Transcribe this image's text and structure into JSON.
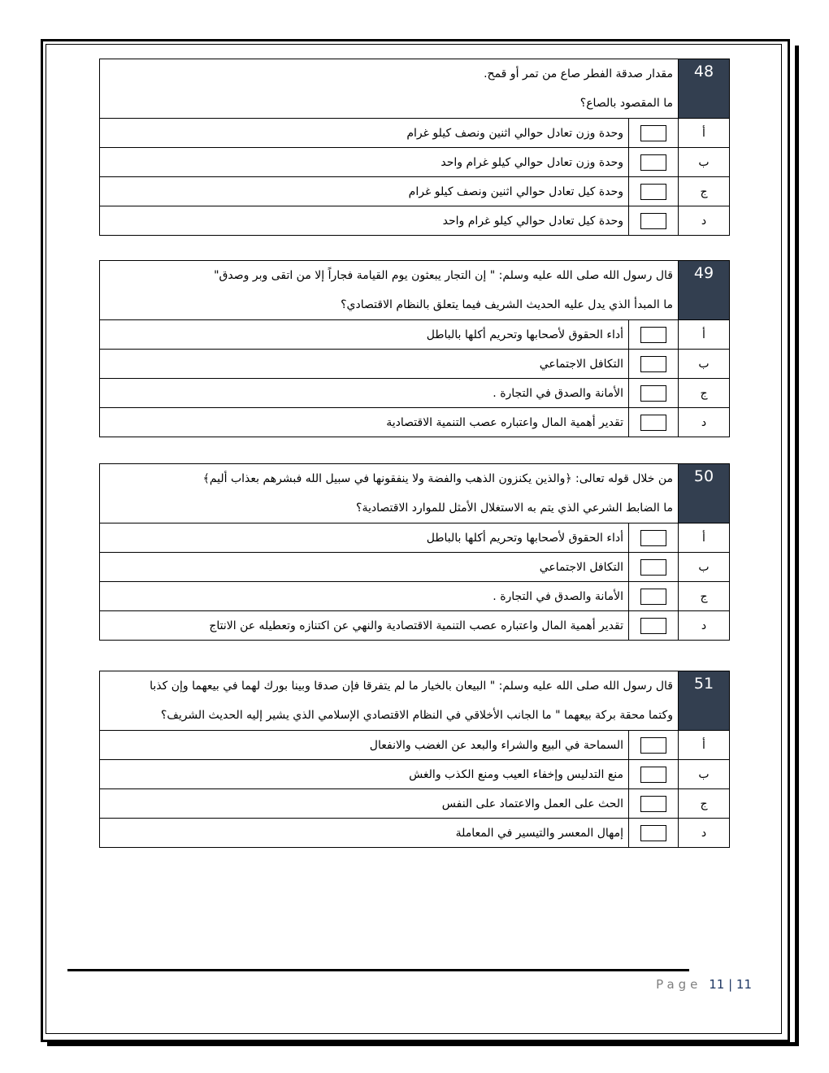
{
  "questions": [
    {
      "number": "48",
      "lines": [
        "مقدار صدقة الفطر صاع من تمر أو قمح.",
        "ما المقصود بالصاع؟"
      ],
      "options": [
        {
          "letter": "أ",
          "text": "وحدة وزن تعادل حوالي اثنين ونصف كيلو غرام"
        },
        {
          "letter": "ب",
          "text": "وحدة وزن تعادل حوالي  كيلو غرام واحد"
        },
        {
          "letter": "ج",
          "text": "وحدة كيل تعادل حوالي اثنين ونصف كيلو غرام"
        },
        {
          "letter": "د",
          "text": "وحدة كيل تعادل حوالي  كيلو غرام واحد"
        }
      ]
    },
    {
      "number": "49",
      "lines": [
        "قال رسول الله صلى الله عليه وسلم: \" إن التجار يبعثون يوم القيامة فجاراً إلا من اتقى وبر وصدق\"",
        "ما المبدأ الذي يدل عليه الحديث الشريف فيما يتعلق بالنظام الاقتصادي؟"
      ],
      "options": [
        {
          "letter": "أ",
          "text": "أداء الحقوق لأصحابها وتحريم أكلها بالباطل"
        },
        {
          "letter": "ب",
          "text": "التكافل الاجتماعي"
        },
        {
          "letter": "ج",
          "text": "الأمانة والصدق في التجارة ."
        },
        {
          "letter": "د",
          "text": "تقدير أهمية المال واعتباره عصب التنمية الاقتصادية"
        }
      ]
    },
    {
      "number": "50",
      "lines": [
        "من خلال قوله تعالى: ﴿والذين يكنزون الذهب والفضة ولا ينفقونها في سبيل الله فبشرهم بعذاب أليم﴾",
        "ما الضابط الشرعي الذي يتم به الاستغلال الأمثل للموارد الاقتصادية؟"
      ],
      "options": [
        {
          "letter": "أ",
          "text": "أداء الحقوق لأصحابها وتحريم أكلها بالباطل"
        },
        {
          "letter": "ب",
          "text": "التكافل الاجتماعي"
        },
        {
          "letter": "ج",
          "text": "الأمانة والصدق في التجارة ."
        },
        {
          "letter": "د",
          "text": "تقدير أهمية المال واعتباره عصب التنمية الاقتصادية والنهي عن اكتنازه وتعطيله عن الانتاج"
        }
      ]
    },
    {
      "number": "51",
      "lines": [
        "قال رسول الله صلى الله عليه وسلم: \" البيعان بالخيار ما لم يتفرقا فإن صدقا وبينا بورك لهما في بيعهما وإن كذبا",
        "وكتما محقة بركة بيعهما \"  ما الجانب الأخلاقي في النظام الاقتصادي الإسلامي الذي يشير إليه الحديث الشريف؟"
      ],
      "options": [
        {
          "letter": "أ",
          "text": "السماحة في البيع والشراء والبعد عن الغضب والانفعال"
        },
        {
          "letter": "ب",
          "text": "منع التدليس وإخفاء العيب ومنع الكذب والغش"
        },
        {
          "letter": "ج",
          "text": "الحث على العمل والاعتماد على النفس"
        },
        {
          "letter": "د",
          "text": "إمهال المعسر والتيسير في المعاملة"
        }
      ]
    }
  ],
  "footer": {
    "label": "Page",
    "current": "11",
    "separator": "|",
    "total": "11"
  }
}
